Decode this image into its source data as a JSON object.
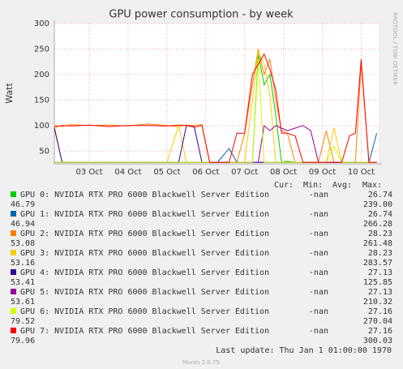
{
  "chart_data": {
    "type": "line",
    "title": "GPU power consumption - by week",
    "y_label": "Watt",
    "side_text": "RRDTOOL / TOBI OETIKER",
    "footer": "Last update: Thu Jan  1 01:00:00 1970",
    "version": "Munin 2.0.75",
    "legend_columns": [
      "Cur:",
      "Min:",
      "Avg:",
      "Max:"
    ],
    "grid": true,
    "xlim": [
      2.1,
      10.45
    ],
    "xticks": [
      {
        "value": 3,
        "label": "03 Oct"
      },
      {
        "value": 4,
        "label": "04 Oct"
      },
      {
        "value": 5,
        "label": "05 Oct"
      },
      {
        "value": 6,
        "label": "06 Oct"
      },
      {
        "value": 7,
        "label": "07 Oct"
      },
      {
        "value": 8,
        "label": "08 Oct"
      },
      {
        "value": 9,
        "label": "09 Oct"
      },
      {
        "value": 10,
        "label": "10 Oct"
      }
    ],
    "ylim": [
      25,
      300
    ],
    "yticks": [
      50,
      100,
      150,
      200,
      250,
      300
    ],
    "x": [
      2.1,
      2.3,
      2.5,
      3,
      3.5,
      4,
      4.5,
      5,
      5.3,
      5.5,
      5.7,
      5.9,
      6.1,
      6.3,
      6.6,
      6.8,
      7.0,
      7.2,
      7.35,
      7.5,
      7.65,
      7.8,
      7.95,
      8.1,
      8.3,
      8.5,
      8.7,
      8.9,
      9.1,
      9.3,
      9.5,
      9.7,
      9.85,
      10.0,
      10.2,
      10.4
    ],
    "series": [
      {
        "name": "GPU 0: NVIDIA RTX PRO 6000 Blackwell Server Edition",
        "color": "#00cc00",
        "cur": "-nan",
        "min": "26.74",
        "avg": "46.79",
        "max": "239.00",
        "values": [
          28,
          28,
          28,
          28,
          28,
          28,
          28,
          28,
          28,
          28,
          28,
          28,
          28,
          28,
          28,
          28,
          28,
          28,
          240,
          180,
          200,
          120,
          28,
          30,
          28,
          28,
          28,
          28,
          28,
          28,
          28,
          28,
          28,
          28,
          28,
          28
        ]
      },
      {
        "name": "GPU 1: NVIDIA RTX PRO 6000 Blackwell Server Edition",
        "color": "#0066b3",
        "cur": "-nan",
        "min": "26.74",
        "avg": "46.94",
        "max": "266.28",
        "values": [
          28,
          28,
          28,
          28,
          28,
          28,
          28,
          28,
          28,
          28,
          28,
          28,
          28,
          28,
          55,
          28,
          28,
          28,
          28,
          28,
          28,
          28,
          28,
          28,
          28,
          28,
          28,
          28,
          28,
          28,
          28,
          28,
          28,
          28,
          28,
          85
        ]
      },
      {
        "name": "GPU 2: NVIDIA RTX PRO 6000 Blackwell Server Edition",
        "color": "#ff8000",
        "cur": "-nan",
        "min": "28.23",
        "avg": "53.08",
        "max": "261.48",
        "values": [
          100,
          98,
          102,
          100,
          101,
          99,
          103,
          100,
          98,
          101,
          100,
          102,
          28,
          28,
          28,
          28,
          85,
          180,
          250,
          200,
          230,
          150,
          90,
          85,
          28,
          28,
          28,
          28,
          90,
          28,
          28,
          28,
          28,
          220,
          28,
          28
        ]
      },
      {
        "name": "GPU 3: NVIDIA RTX PRO 6000 Blackwell Server Edition",
        "color": "#ffcc00",
        "cur": "-nan",
        "min": "28.23",
        "avg": "53.16",
        "max": "283.57",
        "values": [
          100,
          28,
          28,
          28,
          28,
          28,
          28,
          28,
          100,
          28,
          28,
          28,
          28,
          28,
          28,
          28,
          28,
          150,
          245,
          220,
          160,
          28,
          28,
          28,
          28,
          28,
          28,
          28,
          28,
          95,
          28,
          28,
          28,
          28,
          28,
          28
        ]
      },
      {
        "name": "GPU 4: NVIDIA RTX PRO 6000 Blackwell Server Edition",
        "color": "#330099",
        "cur": "-nan",
        "min": "27.13",
        "avg": "53.41",
        "max": "125.85",
        "values": [
          95,
          28,
          28,
          28,
          28,
          28,
          28,
          28,
          28,
          100,
          98,
          28,
          28,
          28,
          28,
          28,
          28,
          28,
          28,
          28,
          28,
          28,
          28,
          28,
          28,
          28,
          28,
          28,
          28,
          28,
          28,
          28,
          28,
          28,
          28,
          28
        ]
      },
      {
        "name": "GPU 5: NVIDIA RTX PRO 6000 Blackwell Server Edition",
        "color": "#990099",
        "cur": "-nan",
        "min": "27.13",
        "avg": "53.61",
        "max": "210.32",
        "values": [
          28,
          28,
          28,
          28,
          28,
          28,
          28,
          28,
          28,
          28,
          28,
          28,
          28,
          28,
          28,
          28,
          28,
          28,
          28,
          100,
          90,
          100,
          95,
          90,
          95,
          100,
          90,
          28,
          28,
          28,
          28,
          28,
          28,
          28,
          28,
          28
        ]
      },
      {
        "name": "GPU 6: NVIDIA RTX PRO 6000 Blackwell Server Edition",
        "color": "#ccff00",
        "cur": "-nan",
        "min": "27.16",
        "avg": "79.52",
        "max": "270.04",
        "values": [
          28,
          28,
          28,
          28,
          28,
          28,
          28,
          28,
          28,
          28,
          28,
          28,
          28,
          28,
          28,
          28,
          28,
          28,
          230,
          28,
          28,
          28,
          28,
          28,
          28,
          28,
          28,
          28,
          28,
          60,
          28,
          28,
          28,
          28,
          28,
          28
        ]
      },
      {
        "name": "GPU 7: NVIDIA RTX PRO 6000 Blackwell Server Edition",
        "color": "#ff0000",
        "cur": "-nan",
        "min": "27.16",
        "avg": "79.96",
        "max": "300.03",
        "values": [
          97,
          100,
          99,
          101,
          98,
          100,
          100,
          99,
          101,
          100,
          97,
          100,
          28,
          28,
          28,
          85,
          85,
          200,
          220,
          240,
          210,
          170,
          85,
          85,
          80,
          28,
          28,
          28,
          28,
          28,
          28,
          80,
          85,
          230,
          28,
          28
        ]
      }
    ]
  }
}
